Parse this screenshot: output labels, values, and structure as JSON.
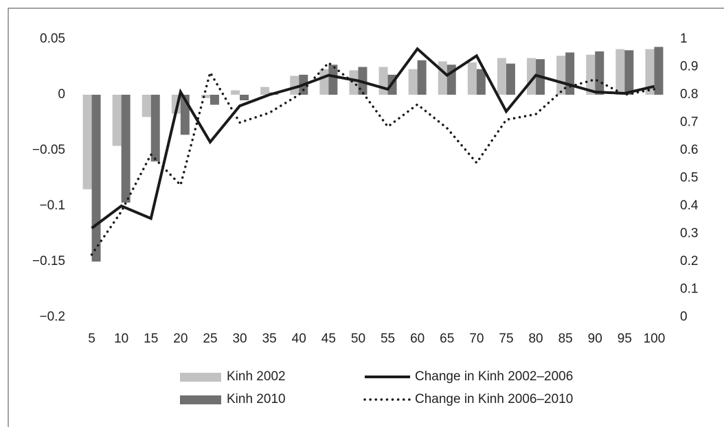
{
  "chart_data": {
    "type": "bar",
    "categories": [
      "5",
      "10",
      "15",
      "20",
      "25",
      "30",
      "35",
      "40",
      "45",
      "50",
      "55",
      "60",
      "65",
      "70",
      "75",
      "80",
      "85",
      "90",
      "95",
      "100"
    ],
    "ylim": [
      -0.2,
      0.05
    ],
    "yticks": [
      {
        "value": -0.2,
        "label": "−0.2"
      },
      {
        "value": -0.15,
        "label": "−0.15"
      },
      {
        "value": -0.1,
        "label": "−0.1"
      },
      {
        "value": -0.05,
        "label": "−0.05"
      },
      0,
      0.05
    ],
    "y2lim": [
      0,
      1
    ],
    "y2ticks": [
      0,
      0.1,
      0.2,
      0.3,
      0.4,
      0.5,
      0.6,
      0.7,
      0.8,
      0.9,
      1
    ],
    "grid": false,
    "legend": "bottom",
    "series": [
      {
        "name": "Kinh 2002",
        "type": "bar",
        "color": "#c2c2c2",
        "values": [
          -0.085,
          -0.046,
          -0.02,
          -0.017,
          -0.003,
          0.004,
          0.007,
          0.017,
          0.023,
          0.022,
          0.025,
          0.023,
          0.03,
          0.029,
          0.033,
          0.033,
          0.035,
          0.036,
          0.041,
          0.041
        ]
      },
      {
        "name": "Kinh 2010",
        "type": "bar",
        "color": "#707070",
        "values": [
          -0.15,
          -0.097,
          -0.06,
          -0.036,
          -0.009,
          -0.005,
          0.002,
          0.018,
          0.027,
          0.025,
          0.018,
          0.031,
          0.027,
          0.023,
          0.028,
          0.032,
          0.038,
          0.039,
          0.04,
          0.043
        ]
      },
      {
        "name": "Change in Kinh 2002–2006",
        "type": "line",
        "axis": "y2",
        "color": "#1a1a1a",
        "line_style": "solid",
        "values": [
          0.32,
          0.4,
          0.355,
          0.81,
          0.63,
          0.76,
          0.8,
          0.83,
          0.87,
          0.85,
          0.82,
          0.965,
          0.87,
          0.94,
          0.74,
          0.87,
          0.84,
          0.81,
          0.805,
          0.83
        ]
      },
      {
        "name": "Change in Kinh 2006–2010",
        "type": "line",
        "axis": "y2",
        "color": "#1a1a1a",
        "line_style": "dotted",
        "values": [
          0.225,
          0.38,
          0.585,
          0.475,
          0.88,
          0.7,
          0.735,
          0.8,
          0.915,
          0.83,
          0.685,
          0.765,
          0.68,
          0.555,
          0.71,
          0.73,
          0.825,
          0.855,
          0.8,
          0.82
        ]
      }
    ]
  }
}
